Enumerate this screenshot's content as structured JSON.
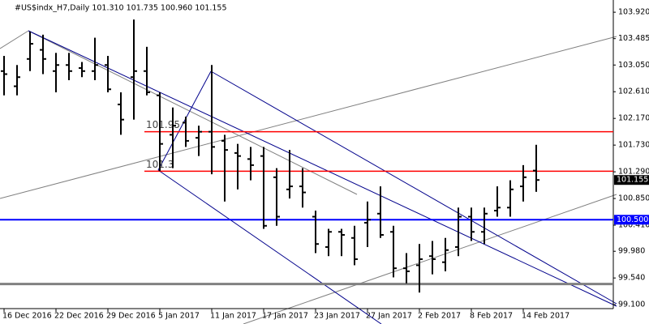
{
  "chart_data": {
    "type": "ohlc",
    "title": "#US$indx_H7,Daily  101.310 101.735 100.960 101.155",
    "color": "#000000",
    "categories": [
      "16 Dec 2016",
      null,
      null,
      null,
      "22 Dec 2016",
      null,
      null,
      null,
      "29 Dec 2016",
      null,
      null,
      null,
      "5 Jan 2017",
      null,
      null,
      null,
      "11 Jan 2017",
      null,
      null,
      null,
      "17 Jan 2017",
      null,
      null,
      null,
      "23 Jan 2017",
      null,
      null,
      null,
      "27 Jan 2017",
      null,
      null,
      null,
      "2 Feb 2017",
      null,
      null,
      null,
      "8 Feb 2017",
      null,
      null,
      null,
      "14 Feb 2017",
      null
    ],
    "open": [
      102.95,
      102.7,
      103.15,
      103.3,
      102.95,
      103.05,
      103.0,
      102.95,
      103.05,
      102.4,
      102.85,
      102.95,
      102.55,
      101.9,
      102.1,
      101.85,
      101.95,
      101.8,
      101.6,
      101.5,
      101.55,
      101.2,
      101.0,
      101.05,
      100.55,
      100.05,
      100.3,
      100.2,
      100.45,
      100.6,
      100.3,
      99.7,
      99.75,
      99.9,
      99.8,
      100.05,
      100.55,
      100.3,
      100.65,
      100.7,
      101.05,
      101.31
    ],
    "high": [
      103.2,
      103.05,
      103.6,
      103.55,
      103.25,
      103.25,
      103.1,
      103.5,
      103.2,
      102.6,
      103.8,
      103.35,
      102.6,
      102.35,
      102.2,
      102.05,
      103.05,
      101.9,
      101.75,
      101.7,
      101.7,
      101.35,
      101.65,
      101.35,
      100.65,
      100.35,
      100.35,
      100.4,
      100.8,
      101.05,
      100.4,
      99.95,
      100.1,
      100.15,
      100.2,
      100.7,
      100.7,
      100.7,
      101.05,
      101.15,
      101.4,
      101.735
    ],
    "low": [
      102.55,
      102.55,
      102.95,
      102.9,
      102.6,
      102.8,
      102.85,
      102.8,
      102.6,
      101.9,
      102.15,
      102.55,
      101.3,
      101.35,
      101.7,
      101.55,
      101.25,
      100.8,
      101.0,
      101.15,
      100.35,
      100.4,
      100.85,
      100.7,
      99.95,
      99.9,
      99.9,
      99.75,
      100.05,
      100.2,
      99.55,
      99.45,
      99.3,
      99.6,
      99.65,
      99.9,
      100.15,
      100.1,
      100.55,
      100.55,
      100.8,
      100.96
    ],
    "close": [
      102.9,
      102.85,
      103.4,
      103.15,
      103.05,
      102.95,
      102.95,
      103.05,
      102.65,
      102.15,
      102.95,
      102.6,
      101.75,
      102.05,
      101.8,
      101.95,
      101.7,
      101.65,
      101.55,
      101.4,
      100.4,
      100.55,
      101.05,
      100.95,
      100.1,
      100.3,
      100.25,
      99.85,
      100.5,
      100.25,
      99.7,
      99.65,
      99.85,
      99.85,
      100.0,
      100.55,
      100.3,
      100.6,
      100.7,
      101.0,
      101.2,
      101.155
    ],
    "ylim": [
      99.035,
      104.095
    ],
    "yticks": [
      {
        "value": 103.92,
        "label": "103.920"
      },
      103.485,
      {
        "value": 103.05,
        "label": "103.050"
      },
      {
        "value": 102.61,
        "label": "102.610"
      },
      {
        "value": 102.17,
        "label": "102.170"
      },
      {
        "value": 101.73,
        "label": "101.730"
      },
      {
        "value": 101.29,
        "label": "101.290"
      },
      {
        "value": 100.85,
        "label": "100.850"
      },
      {
        "value": 100.41,
        "label": "100.410"
      },
      {
        "value": 99.98,
        "label": "99.980"
      },
      {
        "value": 99.54,
        "label": "99.540"
      },
      {
        "value": 99.1,
        "label": "99.100"
      }
    ],
    "hlines": [
      {
        "value": 101.95,
        "color": "#ff0000",
        "label_position": "line"
      },
      {
        "value": 101.3,
        "color": "#ff0000",
        "label_position": "line"
      },
      {
        "value": 100.5,
        "label": "100.500",
        "color": "#0000ff",
        "label_position": "axis"
      },
      {
        "value": 99.44,
        "color": "#808080"
      }
    ],
    "price_marker": 101.155
  }
}
